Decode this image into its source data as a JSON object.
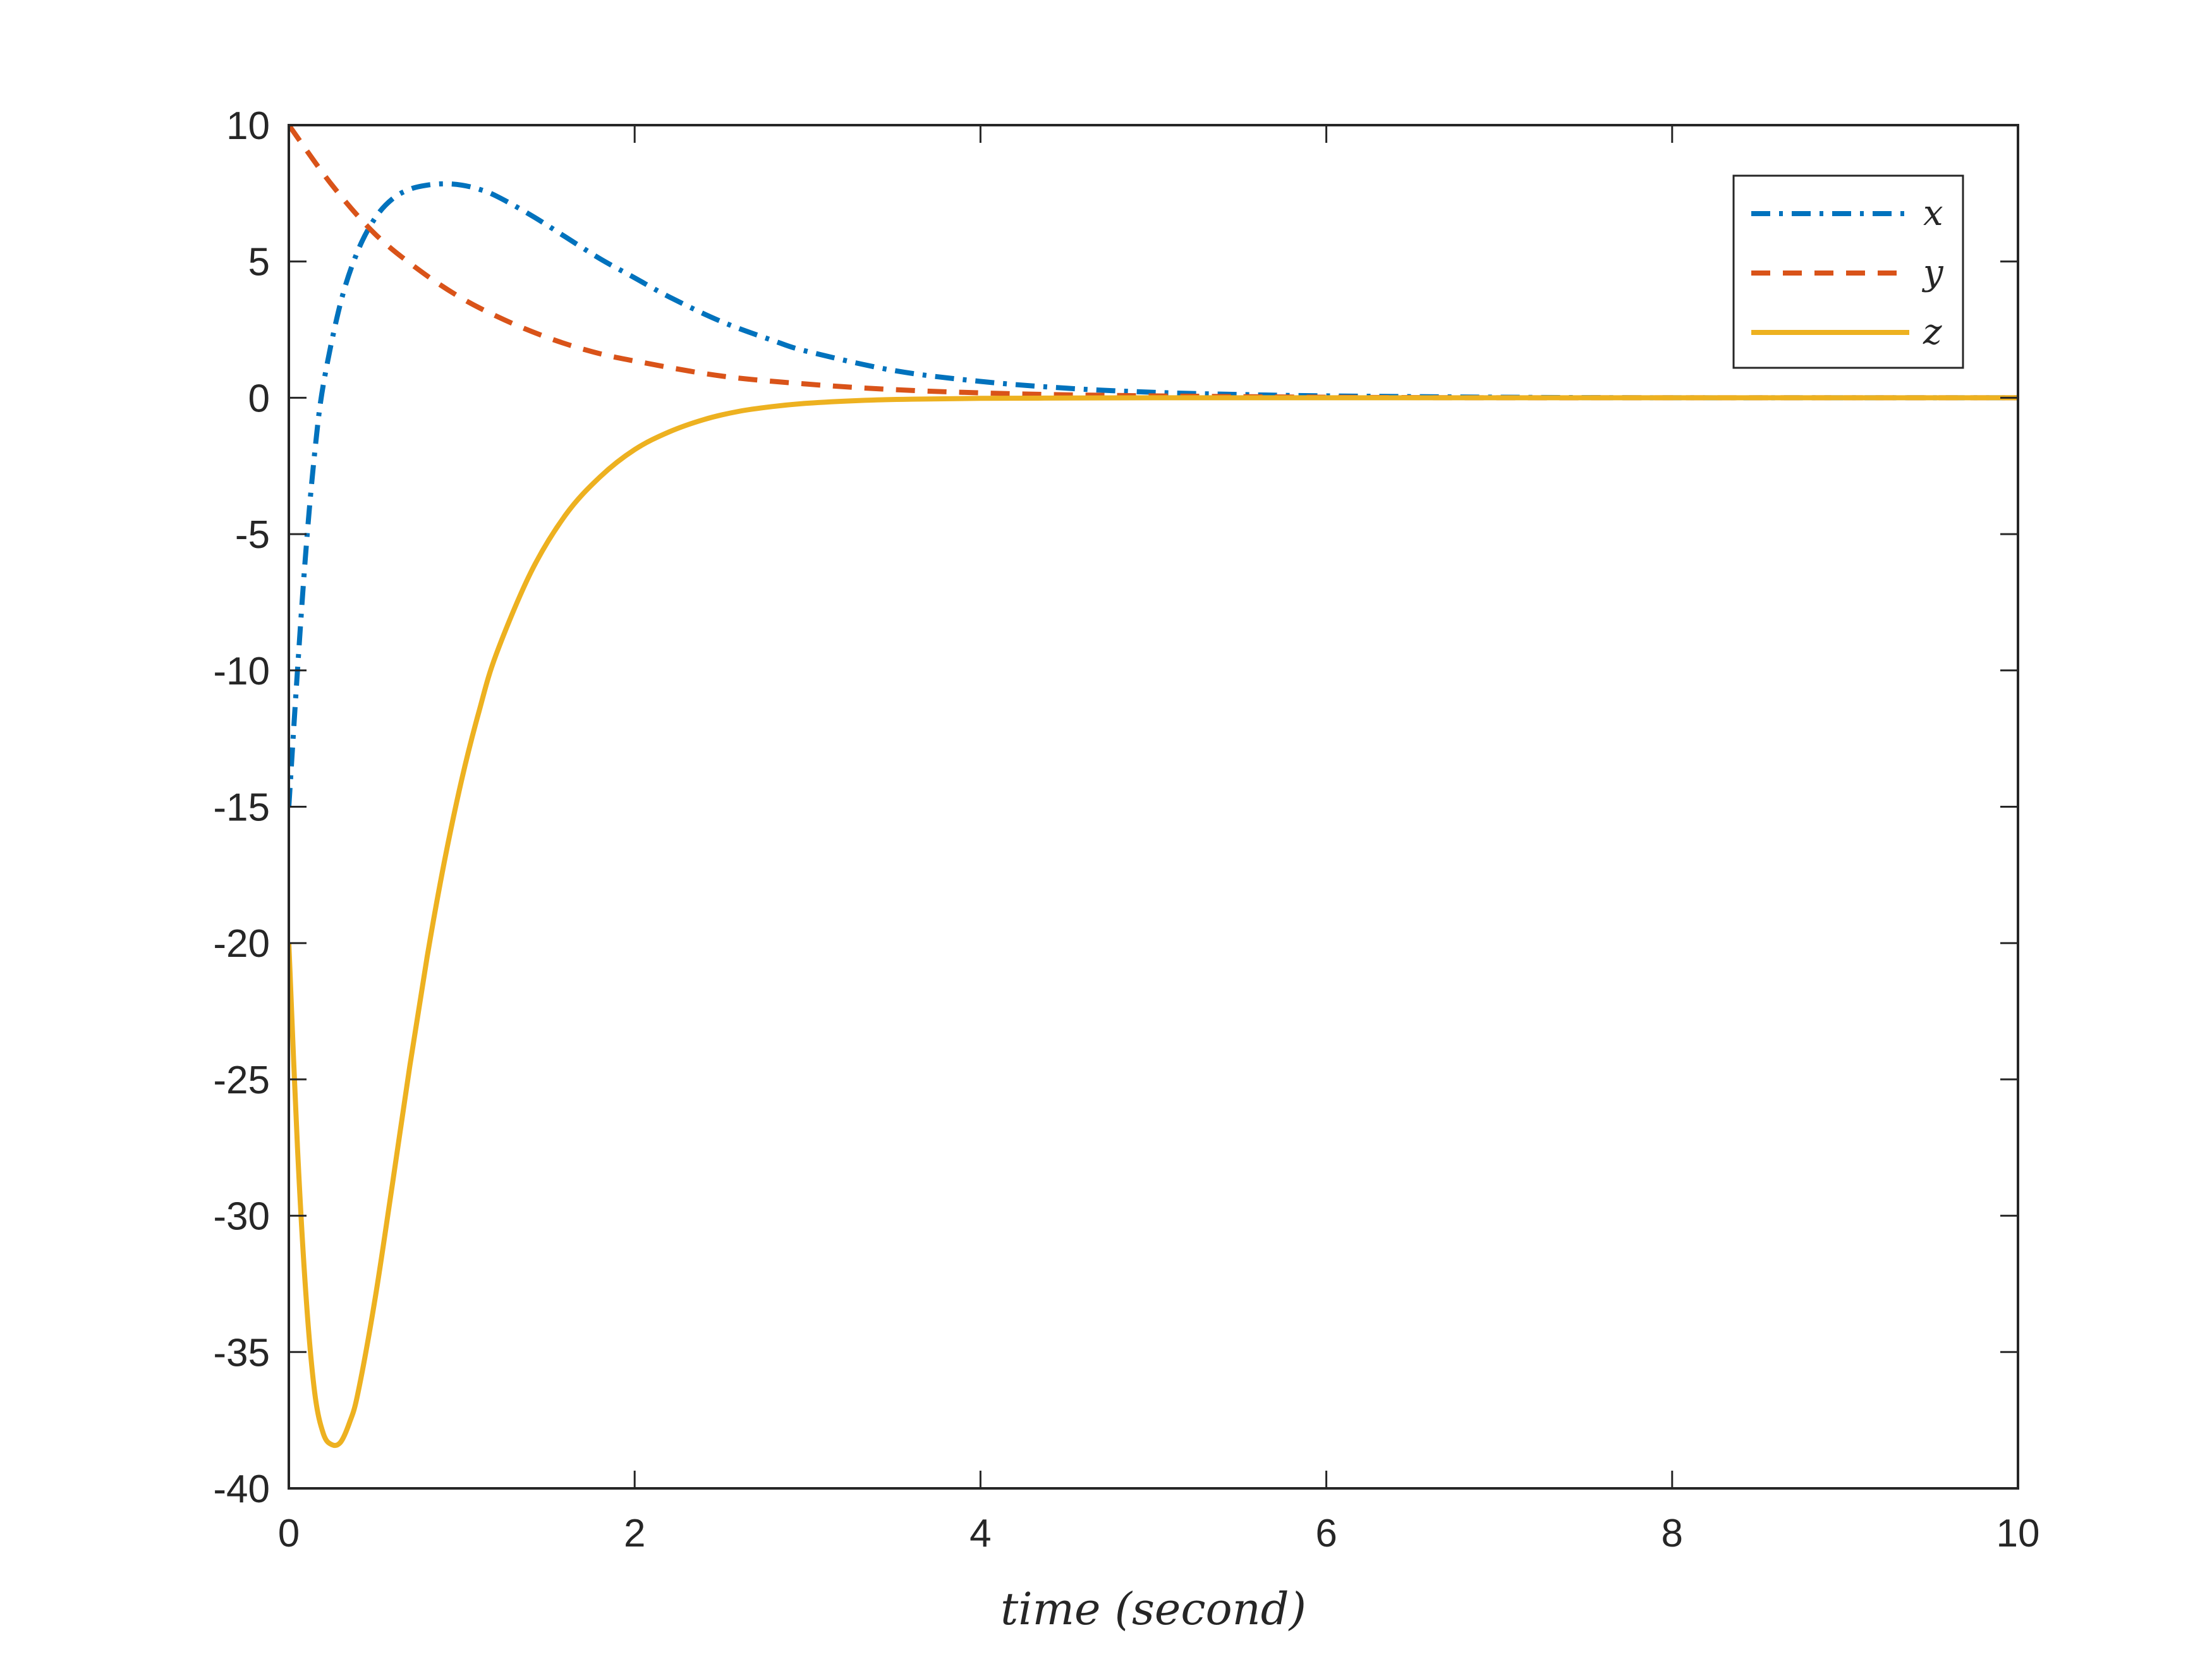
{
  "chart_data": {
    "type": "line",
    "title": "",
    "xlabel": "time (second)",
    "ylabel": "",
    "xlim": [
      0,
      10
    ],
    "ylim": [
      -40,
      10
    ],
    "xticks": [
      0,
      2,
      4,
      6,
      8,
      10
    ],
    "yticks": [
      10,
      5,
      0,
      -5,
      -10,
      -15,
      -20,
      -25,
      -30,
      -35,
      -40
    ],
    "xtick_labels": [
      "0",
      "2",
      "4",
      "6",
      "8",
      "10"
    ],
    "ytick_labels": [
      "10",
      "5",
      "0",
      "-5",
      "-10",
      "-15",
      "-20",
      "-25",
      "-30",
      "-35",
      "-40"
    ],
    "grid": false,
    "legend_position": "top-right",
    "series": [
      {
        "name": "x",
        "color": "#0072BD",
        "style": "dash-dot",
        "x": [
          0,
          0.05,
          0.1,
          0.15,
          0.2,
          0.3,
          0.4,
          0.5,
          0.6,
          0.7,
          0.8,
          0.9,
          1.0,
          1.1,
          1.2,
          1.4,
          1.6,
          1.8,
          2.0,
          2.2,
          2.5,
          2.8,
          3.0,
          3.5,
          4.0,
          4.5,
          5.0,
          5.5,
          6.0,
          7.0,
          8.0,
          9.0,
          10.0
        ],
        "values": [
          -15,
          -10,
          -5.5,
          -2.0,
          0.5,
          3.5,
          5.4,
          6.6,
          7.3,
          7.65,
          7.8,
          7.85,
          7.8,
          7.65,
          7.4,
          6.7,
          5.9,
          5.1,
          4.4,
          3.7,
          2.8,
          2.1,
          1.7,
          1.0,
          0.6,
          0.35,
          0.2,
          0.12,
          0.07,
          0.02,
          0.0,
          0.0,
          0.0
        ]
      },
      {
        "name": "y",
        "color": "#D95319",
        "style": "dashed",
        "x": [
          0,
          0.25,
          0.5,
          0.75,
          1.0,
          1.25,
          1.5,
          1.75,
          2.0,
          2.5,
          3.0,
          3.5,
          4.0,
          4.5,
          5.0,
          6.0,
          7.0,
          8.0,
          9.0,
          10.0
        ],
        "values": [
          10,
          7.8,
          6.0,
          4.7,
          3.65,
          2.85,
          2.2,
          1.7,
          1.35,
          0.8,
          0.5,
          0.3,
          0.18,
          0.11,
          0.07,
          0.02,
          0.0,
          0.0,
          0.0,
          0.0
        ]
      },
      {
        "name": "z",
        "color": "#EDB120",
        "style": "solid",
        "x": [
          0,
          0.05,
          0.1,
          0.15,
          0.2,
          0.25,
          0.3,
          0.35,
          0.4,
          0.5,
          0.6,
          0.7,
          0.8,
          0.9,
          1.0,
          1.1,
          1.2,
          1.4,
          1.6,
          1.8,
          2.0,
          2.2,
          2.4,
          2.6,
          2.8,
          3.0,
          3.3,
          3.6,
          4.0,
          4.5,
          5.0,
          6.0,
          7.0,
          8.0,
          9.0,
          10.0
        ],
        "values": [
          -20,
          -27.5,
          -33,
          -36.5,
          -38.0,
          -38.4,
          -38.3,
          -37.6,
          -36.5,
          -33.0,
          -28.8,
          -24.5,
          -20.5,
          -17.0,
          -14.0,
          -11.5,
          -9.4,
          -6.4,
          -4.3,
          -2.9,
          -1.9,
          -1.25,
          -0.8,
          -0.5,
          -0.32,
          -0.2,
          -0.1,
          -0.05,
          -0.02,
          -0.01,
          0.0,
          0.0,
          0.0,
          0.0,
          0.0,
          0.0
        ]
      }
    ]
  }
}
